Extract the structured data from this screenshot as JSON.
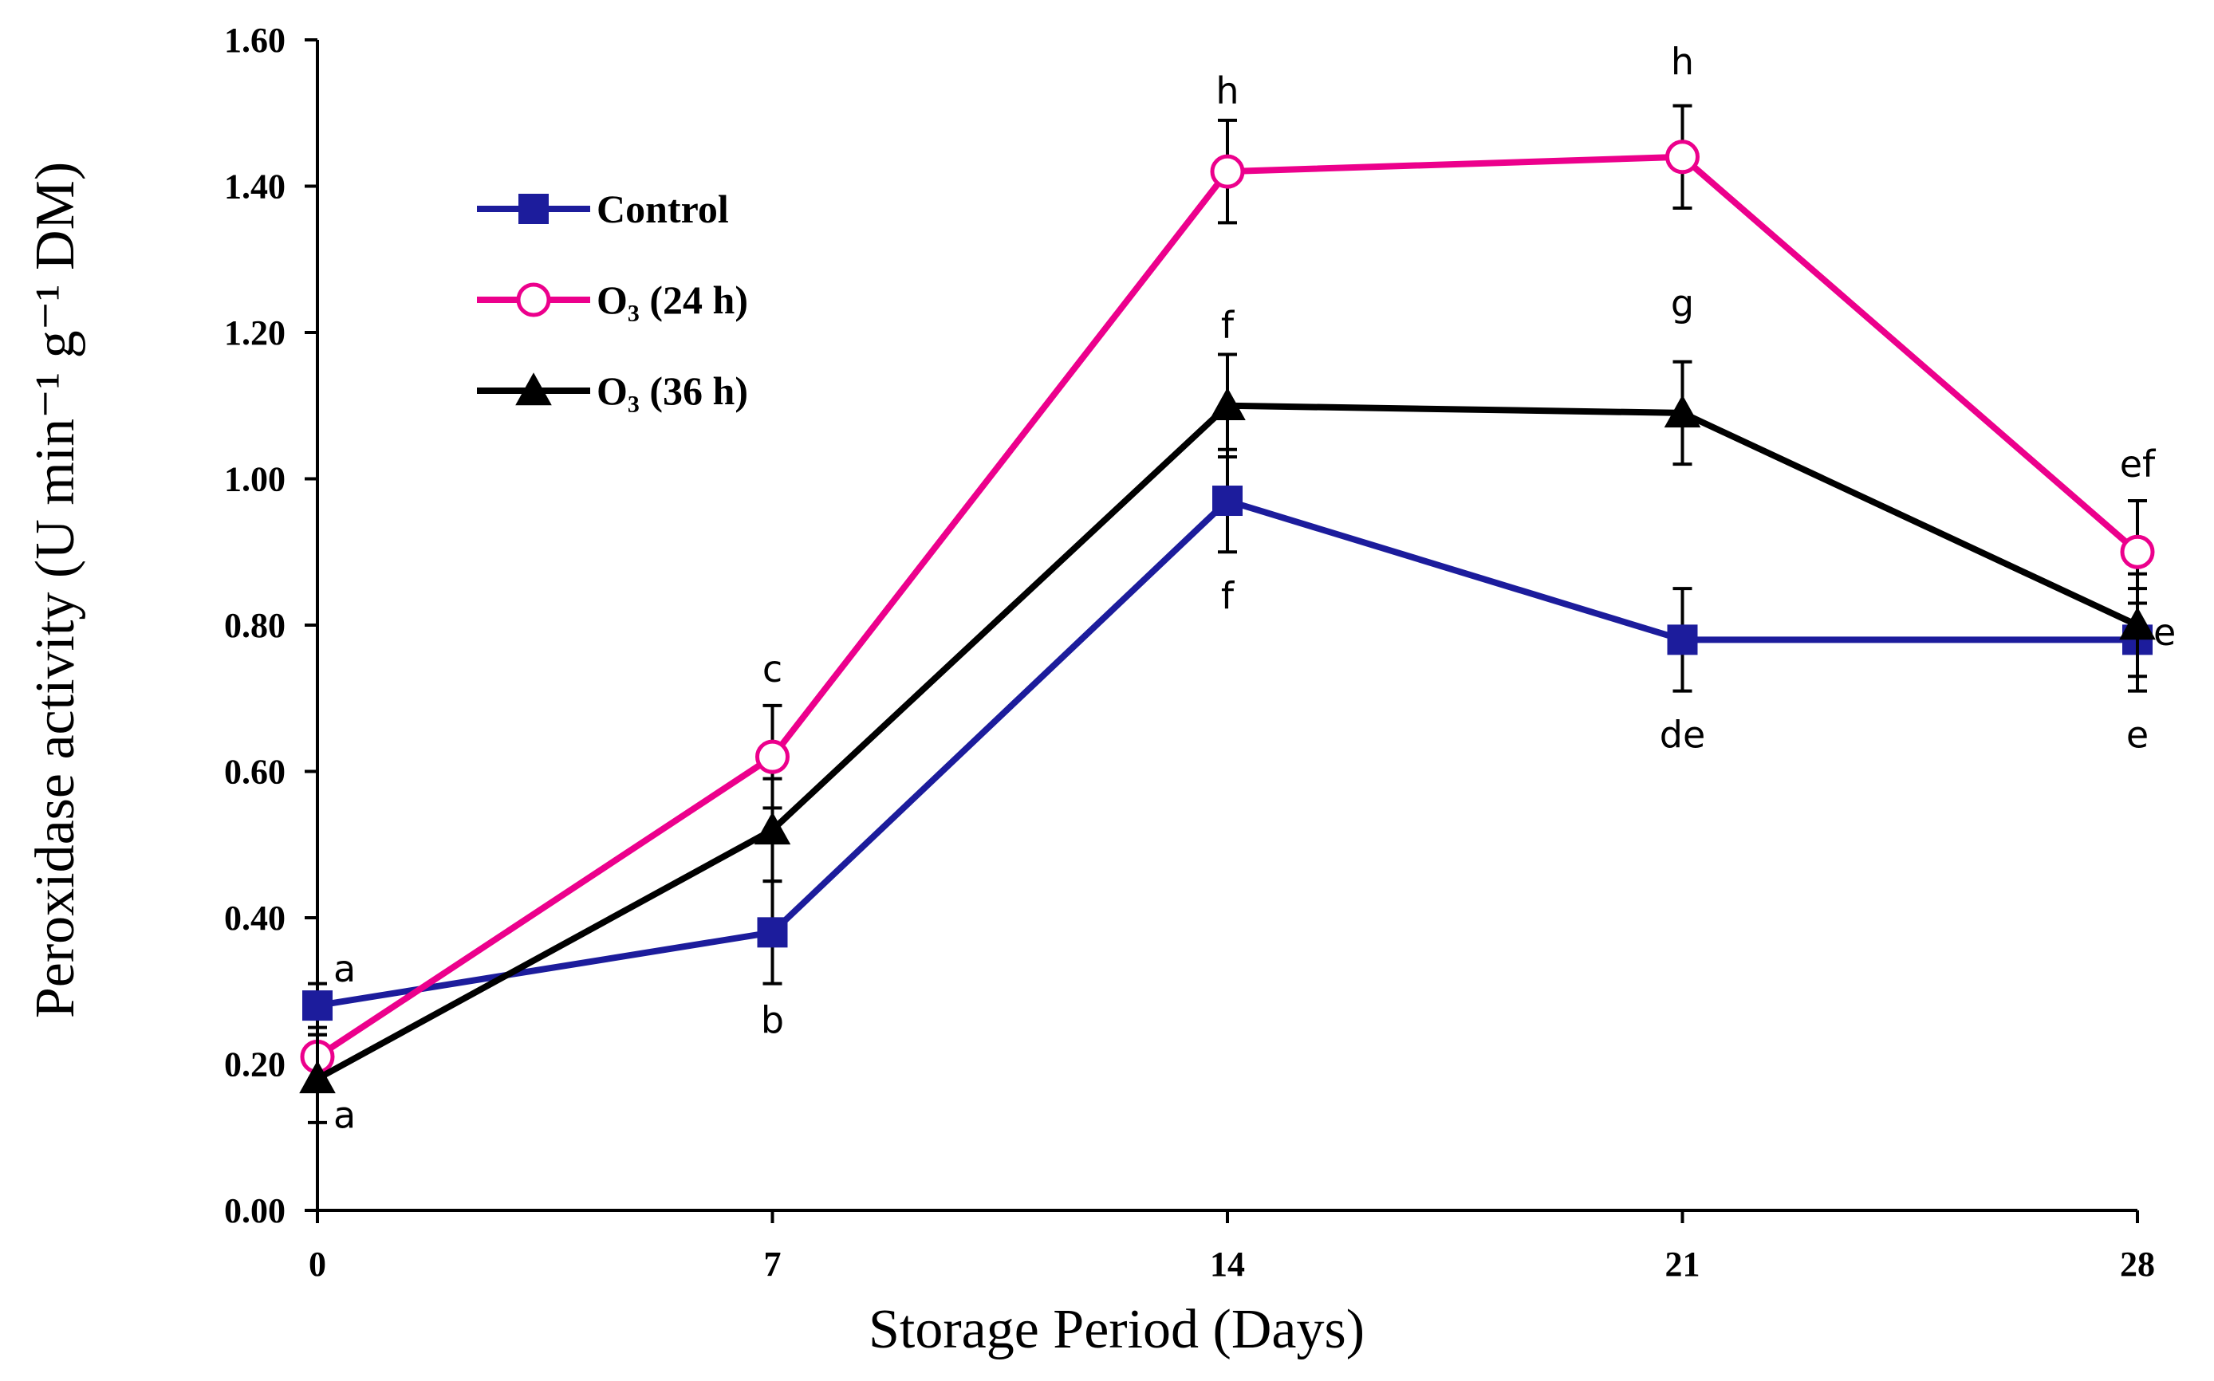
{
  "chart_data": {
    "type": "line",
    "title": "",
    "xlabel": "Storage Period (Days)",
    "ylabel": "Peroxidase activity (U min⁻¹ g⁻¹ DM)",
    "x": [
      0,
      7,
      14,
      21,
      28
    ],
    "x_tick_labels": [
      "0",
      "7",
      "14",
      "21",
      "28"
    ],
    "ylim": [
      0,
      1.6
    ],
    "y_tick_labels": [
      "0.00",
      "0.20",
      "0.40",
      "0.60",
      "0.80",
      "1.00",
      "1.20",
      "1.40",
      "1.60"
    ],
    "grid": false,
    "legend_position": "top-left",
    "series": [
      {
        "name": "Control",
        "color": "#1c1c9c",
        "marker": "square",
        "values": [
          0.28,
          0.38,
          0.97,
          0.78,
          0.78
        ],
        "errors": [
          0.03,
          0.07,
          0.07,
          0.07,
          0.07
        ]
      },
      {
        "name": "O₃ (24 h)",
        "color": "#ec008c",
        "marker": "circle-open",
        "values": [
          0.21,
          0.62,
          1.42,
          1.44,
          0.9
        ],
        "errors": [
          0.03,
          0.07,
          0.07,
          0.07,
          0.07
        ]
      },
      {
        "name": "O₃ (36 h)",
        "color": "#000000",
        "marker": "triangle",
        "values": [
          0.18,
          0.52,
          1.1,
          1.09,
          0.8
        ],
        "errors": [
          0.06,
          0.07,
          0.07,
          0.07,
          0.07
        ]
      }
    ],
    "annotations": [
      {
        "text": "a",
        "x": 0,
        "y": 0.33,
        "side": "right"
      },
      {
        "text": "a",
        "x": 0,
        "y": 0.13,
        "side": "right"
      },
      {
        "text": "c",
        "x": 7,
        "y": 0.74
      },
      {
        "text": "b",
        "x": 7,
        "y": 0.26
      },
      {
        "text": "h",
        "x": 14,
        "y": 1.53
      },
      {
        "text": "f",
        "x": 14,
        "y": 1.21
      },
      {
        "text": "f",
        "x": 14,
        "y": 0.84
      },
      {
        "text": "h",
        "x": 21,
        "y": 1.57
      },
      {
        "text": "g",
        "x": 21,
        "y": 1.24
      },
      {
        "text": "de",
        "x": 21,
        "y": 0.65
      },
      {
        "text": "ef",
        "x": 28,
        "y": 1.02
      },
      {
        "text": "e",
        "x": 28,
        "y": 0.79,
        "side": "right"
      },
      {
        "text": "e",
        "x": 28,
        "y": 0.65
      }
    ]
  }
}
